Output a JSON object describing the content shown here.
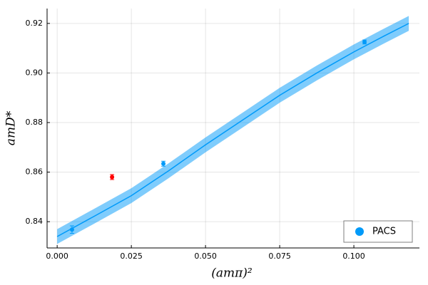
{
  "chart_data": {
    "type": "scatter",
    "x_label": "(amπ)²",
    "y_label": "amD*",
    "xlim": [
      -0.0034,
      0.1221
    ],
    "ylim": [
      0.8294,
      0.926
    ],
    "xticks": [
      {
        "value": 0,
        "label": "0.000"
      },
      {
        "value": 0.025,
        "label": "0.025"
      },
      {
        "value": 0.05,
        "label": "0.050"
      },
      {
        "value": 0.075,
        "label": "0.075"
      },
      {
        "value": 0.1,
        "label": "0.100"
      }
    ],
    "yticks": [
      0.84,
      0.86,
      0.88,
      {
        "value": 0.9,
        "label": "0.90"
      },
      0.92
    ],
    "grid": true,
    "legend": "bottom-right",
    "series": [
      {
        "style": "band",
        "color": "#009af9",
        "x": [
          0,
          0.0125,
          0.025,
          0.0375,
          0.05,
          0.0625,
          0.075,
          0.0875,
          0.1,
          0.11,
          0.1185
        ],
        "values": [
          0.834,
          0.8422,
          0.8505,
          0.8605,
          0.871,
          0.881,
          0.891,
          0.9,
          0.9085,
          0.9148,
          0.92
        ],
        "errors": [
          0.003,
          0.003,
          0.003,
          0.003,
          0.003,
          0.003,
          0.003,
          0.003,
          0.003,
          0.003,
          0.003
        ]
      },
      {
        "style": "points",
        "name": "PACS",
        "color": "#009af9",
        "x": [
          0.005,
          0.0358,
          0.1036
        ],
        "values": [
          0.8368,
          0.8634,
          0.9125
        ],
        "errors": [
          0.0015,
          0.001,
          0.0008
        ]
      },
      {
        "style": "points",
        "color": "#ff0000",
        "x": [
          0.0185
        ],
        "values": [
          0.858
        ],
        "errors": [
          0.001
        ]
      }
    ]
  }
}
